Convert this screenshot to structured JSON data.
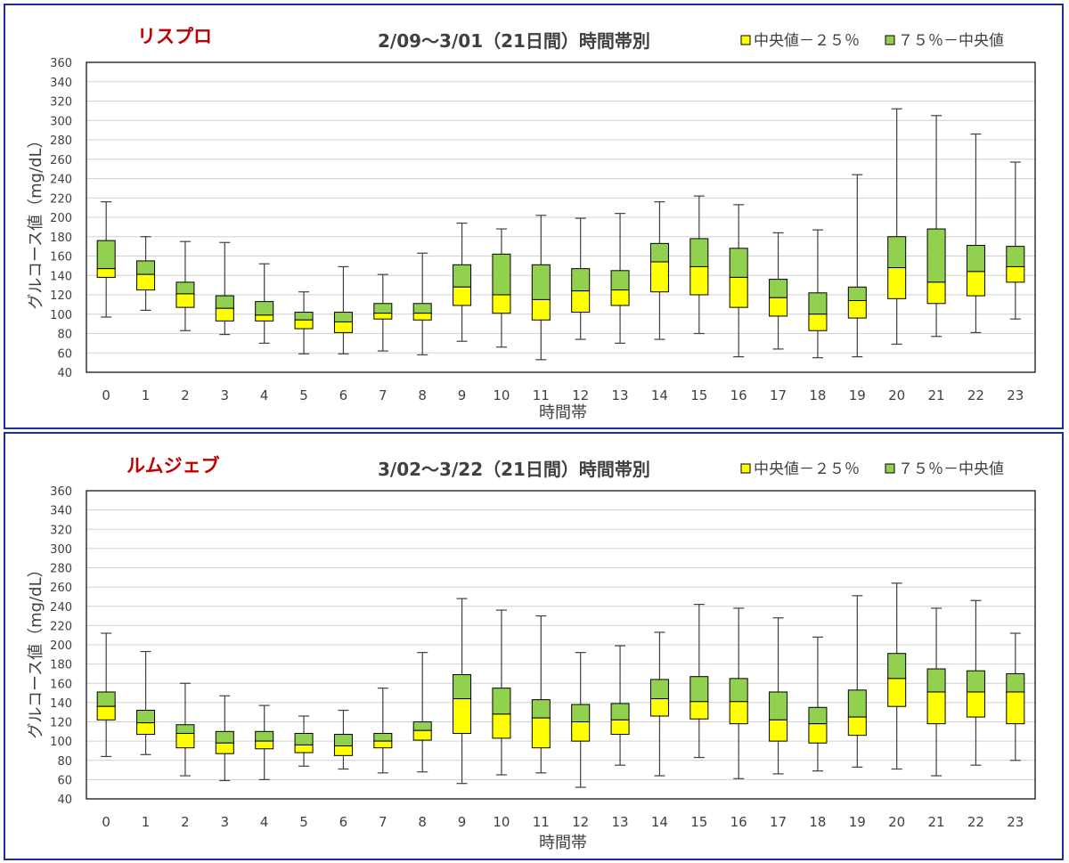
{
  "legend": {
    "lower_label": "中央値－２５％",
    "upper_label": "７５％－中央値",
    "lower_color": "#ffff00",
    "upper_color": "#92d050"
  },
  "chart_data": [
    {
      "type": "box",
      "title_drug": "リスプロ",
      "title": "2/09～3/01（21日間）時間帯別",
      "xlabel": "時間帯",
      "ylabel": "グルコース値（mg/dL）",
      "ylim": [
        40,
        360
      ],
      "yticks": [
        40,
        60,
        80,
        100,
        120,
        140,
        160,
        180,
        200,
        220,
        240,
        260,
        280,
        300,
        320,
        340,
        360
      ],
      "grid": true,
      "categories": [
        "0",
        "1",
        "2",
        "3",
        "4",
        "5",
        "6",
        "7",
        "8",
        "9",
        "10",
        "11",
        "12",
        "13",
        "14",
        "15",
        "16",
        "17",
        "18",
        "19",
        "20",
        "21",
        "22",
        "23"
      ],
      "min": [
        97,
        104,
        83,
        79,
        70,
        59,
        59,
        62,
        58,
        72,
        66,
        53,
        74,
        70,
        74,
        80,
        56,
        64,
        55,
        56,
        69,
        77,
        81,
        95
      ],
      "q1": [
        138,
        125,
        107,
        93,
        93,
        85,
        81,
        95,
        94,
        109,
        101,
        94,
        102,
        109,
        123,
        120,
        107,
        98,
        83,
        96,
        116,
        111,
        119,
        133
      ],
      "median": [
        147,
        141,
        121,
        106,
        99,
        94,
        92,
        101,
        101,
        128,
        120,
        115,
        124,
        125,
        154,
        149,
        138,
        117,
        100,
        114,
        148,
        133,
        144,
        149
      ],
      "q3": [
        176,
        155,
        133,
        119,
        113,
        102,
        102,
        111,
        111,
        151,
        162,
        151,
        147,
        145,
        173,
        178,
        168,
        136,
        122,
        128,
        180,
        188,
        171,
        170
      ],
      "max": [
        216,
        180,
        175,
        174,
        152,
        123,
        149,
        141,
        163,
        194,
        188,
        202,
        199,
        204,
        216,
        222,
        213,
        184,
        187,
        244,
        312,
        305,
        286,
        257
      ]
    },
    {
      "type": "box",
      "title_drug": "ルムジェブ",
      "title": "3/02～3/22（21日間）時間帯別",
      "xlabel": "時間帯",
      "ylabel": "グルコース値（mg/dL）",
      "ylim": [
        40,
        360
      ],
      "yticks": [
        40,
        60,
        80,
        100,
        120,
        140,
        160,
        180,
        200,
        220,
        240,
        260,
        280,
        300,
        320,
        340,
        360
      ],
      "grid": true,
      "categories": [
        "0",
        "1",
        "2",
        "3",
        "4",
        "5",
        "6",
        "7",
        "8",
        "9",
        "10",
        "11",
        "12",
        "13",
        "14",
        "15",
        "16",
        "17",
        "18",
        "19",
        "20",
        "21",
        "22",
        "23"
      ],
      "min": [
        84,
        86,
        64,
        59,
        60,
        74,
        71,
        67,
        68,
        56,
        65,
        67,
        52,
        75,
        64,
        83,
        61,
        66,
        69,
        73,
        71,
        64,
        75,
        80
      ],
      "q1": [
        122,
        107,
        93,
        87,
        92,
        88,
        85,
        93,
        101,
        108,
        103,
        93,
        100,
        107,
        126,
        123,
        118,
        100,
        98,
        106,
        136,
        118,
        125,
        118
      ],
      "median": [
        136,
        119,
        108,
        98,
        100,
        96,
        95,
        100,
        111,
        144,
        128,
        124,
        120,
        122,
        144,
        141,
        141,
        122,
        118,
        125,
        165,
        151,
        151,
        151
      ],
      "q3": [
        151,
        132,
        117,
        110,
        110,
        108,
        107,
        108,
        120,
        169,
        155,
        143,
        138,
        139,
        164,
        167,
        165,
        151,
        135,
        153,
        191,
        175,
        173,
        170
      ],
      "max": [
        212,
        193,
        160,
        147,
        137,
        126,
        132,
        155,
        192,
        248,
        236,
        230,
        192,
        199,
        213,
        242,
        238,
        228,
        208,
        251,
        264,
        238,
        246,
        212
      ]
    }
  ]
}
